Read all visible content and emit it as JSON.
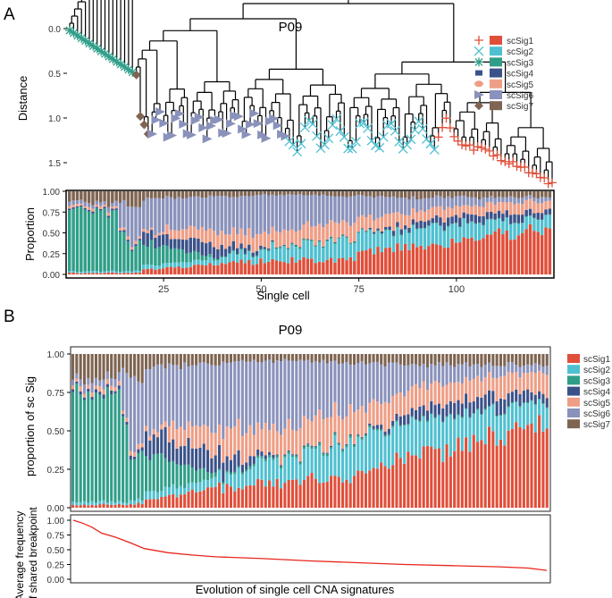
{
  "panel_labels": {
    "a": "A",
    "b": "B"
  },
  "palette": {
    "scSig1": "#e04f3a",
    "scSig2": "#4fc0d0",
    "scSig3": "#2f9e88",
    "scSig4": "#3b5289",
    "scSig5": "#ef9e86",
    "scSig6": "#8a92bb",
    "scSig7": "#7e6451"
  },
  "chart_data": [
    {
      "type": "dendrogram",
      "title": "P09",
      "ylabel": "Distance",
      "ylim": [
        0,
        1.75
      ],
      "y_ticks": [
        "0.0",
        "0.5",
        "1.0",
        "1.5"
      ],
      "legend": {
        "position": "top-right",
        "entries": [
          "scSig1",
          "scSig2",
          "scSig3",
          "scSig4",
          "scSig5",
          "scSig6",
          "scSig7"
        ],
        "markers": [
          "plus",
          "cross",
          "star",
          "rect",
          "ellipse",
          "triangle",
          "diamond"
        ]
      },
      "n_leaves": 124,
      "leaf_dominant_sig_groups": [
        {
          "from": 1,
          "to": 17,
          "sig": "scSig3"
        },
        {
          "from": 18,
          "to": 21,
          "sig": "scSig7"
        },
        {
          "from": 22,
          "to": 56,
          "sig": "scSig6"
        },
        {
          "from": 57,
          "to": 94,
          "sig": "scSig2"
        },
        {
          "from": 95,
          "to": 124,
          "sig": "scSig1"
        }
      ]
    },
    {
      "type": "stacked_bar",
      "xlabel": "Single cell",
      "ylabel": "Proportion",
      "n_cells": 124,
      "x_ticks": [
        "25",
        "50",
        "75",
        "100"
      ],
      "y_ticks": [
        "0.00",
        "0.25",
        "0.50",
        "0.75",
        "1.00"
      ],
      "ylim": [
        0,
        1
      ],
      "series_order": [
        "scSig1",
        "scSig2",
        "scSig3",
        "scSig4",
        "scSig5",
        "scSig6",
        "scSig7"
      ]
    },
    {
      "type": "stacked_bar",
      "title": "P09",
      "ylabel": "proportion of sc Sig",
      "n_cells": 124,
      "y_ticks": [
        "0.00",
        "0.25",
        "0.50",
        "0.75",
        "1.00"
      ],
      "ylim": [
        0,
        1
      ],
      "legend": {
        "position": "right",
        "entries": [
          "scSig1",
          "scSig2",
          "scSig3",
          "scSig4",
          "scSig5",
          "scSig6",
          "scSig7"
        ]
      }
    },
    {
      "type": "line",
      "ylabel_line1": "Average frequency",
      "ylabel_line2": "of shared breakpoint",
      "xlabel": "Evolution of single cell CNA signatures",
      "y_ticks": [
        "1.00",
        "0.75",
        "0.50",
        "0.25",
        "0.00"
      ],
      "ylim": [
        0,
        1
      ],
      "x": [
        0,
        0.02,
        0.04,
        0.06,
        0.09,
        0.12,
        0.15,
        0.2,
        0.25,
        0.3,
        0.4,
        0.5,
        0.6,
        0.7,
        0.8,
        0.9,
        0.96,
        1.0
      ],
      "y": [
        1.0,
        0.95,
        0.88,
        0.78,
        0.71,
        0.62,
        0.52,
        0.45,
        0.41,
        0.38,
        0.35,
        0.31,
        0.28,
        0.25,
        0.23,
        0.21,
        0.19,
        0.15
      ],
      "line_color": "#e8251c"
    }
  ]
}
